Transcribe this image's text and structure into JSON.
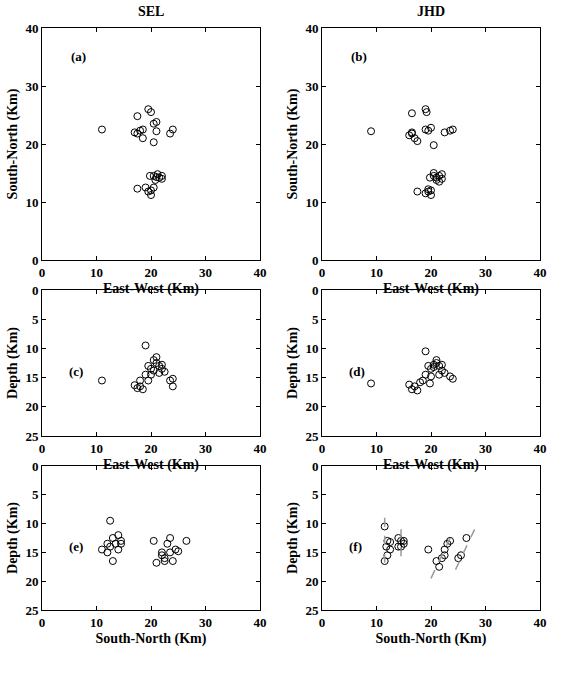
{
  "chart_data": [
    {
      "type": "scatter",
      "title": "SEL",
      "annotations": [
        "(a)"
      ],
      "x_label": "East-West (Km)",
      "y_label": "South-North (Km)",
      "xlim": [
        0,
        40
      ],
      "xticks": [
        0,
        10,
        20,
        30,
        40
      ],
      "ylim": [
        0,
        40
      ],
      "yticks": [
        0,
        10,
        20,
        30,
        40
      ],
      "series": [
        {
          "color": "#000000",
          "marker": "circle-open",
          "x": [
            11,
            17.5,
            19.5,
            20,
            17,
            18,
            17.5,
            18.5,
            20.5,
            21,
            21,
            23.5,
            24,
            20.5,
            18.5,
            17.5,
            19,
            19.5,
            20,
            20.5,
            20,
            20.5,
            21,
            21.5,
            22,
            20.8,
            21.2,
            22,
            19.8
          ],
          "y": [
            22.5,
            24.8,
            26,
            25.5,
            22,
            22.3,
            21.8,
            22.5,
            23.5,
            23.8,
            22.2,
            21.8,
            22.5,
            20.3,
            21,
            12.3,
            12.5,
            11.8,
            11.2,
            12.5,
            12,
            14.5,
            14.3,
            14.2,
            14,
            13.8,
            14.8,
            14.5,
            14.5
          ]
        }
      ]
    },
    {
      "type": "scatter",
      "title": "JHD",
      "annotations": [
        "(b)"
      ],
      "x_label": "East-West (Km)",
      "y_label": "South-North (Km)",
      "xlim": [
        0,
        40
      ],
      "xticks": [
        0,
        10,
        20,
        30,
        40
      ],
      "ylim": [
        0,
        40
      ],
      "yticks": [
        0,
        10,
        20,
        30,
        40
      ],
      "series": [
        {
          "color": "#000000",
          "marker": "circle-open",
          "x": [
            9,
            16.5,
            19,
            19.2,
            16,
            16.5,
            17,
            16.5,
            17.5,
            19,
            19.5,
            20,
            20.5,
            22.5,
            23.5,
            24,
            17.5,
            19,
            19.5,
            20,
            20,
            19.5,
            20.5,
            21,
            21.5,
            22,
            21,
            22,
            20.5,
            21.5,
            19.8
          ],
          "y": [
            22.2,
            25.3,
            26,
            25.5,
            21.5,
            21.8,
            21,
            22,
            20.5,
            22.5,
            22.3,
            22.8,
            19.8,
            22,
            22.3,
            22.5,
            11.8,
            11.5,
            11.8,
            11.2,
            12,
            12.2,
            14.5,
            14.2,
            14.5,
            14.8,
            13.8,
            14,
            15,
            13.5,
            14.2
          ]
        }
      ]
    },
    {
      "type": "scatter",
      "annotations": [
        "(c)"
      ],
      "x_label": "East-West (Km)",
      "y_label": "Depth (Km)",
      "xlim": [
        0,
        40
      ],
      "xticks": [
        0,
        10,
        20,
        30,
        40
      ],
      "ylim": [
        25,
        0
      ],
      "yticks": [
        0,
        5,
        10,
        15,
        20,
        25
      ],
      "series": [
        {
          "color": "#000000",
          "marker": "circle-open",
          "x": [
            11,
            17,
            17.5,
            18,
            18.5,
            18,
            19,
            19.5,
            20,
            20.5,
            21,
            21.5,
            22,
            20,
            21,
            22.5,
            23.5,
            24,
            24,
            19,
            20.5,
            21.5,
            19.5,
            22
          ],
          "y": [
            15.5,
            16.3,
            16.8,
            16.5,
            17,
            15.5,
            9.5,
            13,
            13.5,
            13.8,
            12.5,
            13,
            13.5,
            14.5,
            11.5,
            14,
            15.5,
            15.2,
            16.5,
            14.5,
            12,
            14.2,
            15.5,
            12.8
          ]
        }
      ]
    },
    {
      "type": "scatter",
      "annotations": [
        "(d)"
      ],
      "x_label": "East-West (Km)",
      "y_label": "Depth (Km)",
      "xlim": [
        0,
        40
      ],
      "xticks": [
        0,
        10,
        20,
        30,
        40
      ],
      "ylim": [
        25,
        0
      ],
      "yticks": [
        0,
        5,
        10,
        15,
        20,
        25
      ],
      "series": [
        {
          "color": "#000000",
          "marker": "circle-open",
          "x": [
            9,
            16,
            16.5,
            17,
            17.5,
            18,
            19,
            19.5,
            20,
            20.5,
            21,
            21.5,
            22,
            20,
            21,
            22.5,
            23.5,
            24,
            19,
            20.5,
            21.5,
            18.5,
            22,
            19.8
          ],
          "y": [
            16,
            16.2,
            17,
            16.5,
            17.2,
            15.8,
            10.5,
            13,
            13.5,
            13.2,
            12.5,
            13,
            13.8,
            14.8,
            12,
            14.2,
            14.8,
            15.2,
            14.5,
            12.8,
            14.5,
            15.5,
            12.8,
            16
          ]
        }
      ]
    },
    {
      "type": "scatter",
      "annotations": [
        "(e)"
      ],
      "x_label": "South-North (Km)",
      "y_label": "Depth (Km)",
      "xlim": [
        0,
        40
      ],
      "xticks": [
        0,
        10,
        20,
        30,
        40
      ],
      "ylim": [
        25,
        0
      ],
      "yticks": [
        0,
        5,
        10,
        15,
        20,
        25
      ],
      "series": [
        {
          "color": "#000000",
          "marker": "circle-open",
          "x": [
            11,
            12,
            12.5,
            12,
            13,
            13.5,
            14,
            14.5,
            13,
            12.5,
            14,
            14.5,
            20.5,
            21,
            22,
            22.5,
            22,
            23,
            23.5,
            24.5,
            25,
            26.5,
            24,
            22.5,
            23.5
          ],
          "y": [
            14.5,
            13.5,
            9.5,
            15,
            12.5,
            13.5,
            12,
            13,
            16.5,
            14,
            14.5,
            13.5,
            13,
            16.8,
            15.5,
            16.5,
            15,
            13.5,
            12.5,
            14.5,
            14.8,
            13,
            16.5,
            16,
            15
          ]
        }
      ]
    },
    {
      "type": "scatter",
      "annotations": [
        "(f)"
      ],
      "x_label": "South-North (Km)",
      "y_label": "Depth (Km)",
      "xlim": [
        0,
        40
      ],
      "xticks": [
        0,
        10,
        20,
        30,
        40
      ],
      "ylim": [
        25,
        0
      ],
      "yticks": [
        0,
        5,
        10,
        15,
        20,
        25
      ],
      "series": [
        {
          "color": "#000000",
          "marker": "circle-open",
          "x": [
            11.5,
            11.8,
            12,
            12.5,
            11.5,
            12,
            12.5,
            14,
            14.5,
            15,
            14,
            15,
            14.5,
            19.5,
            21,
            21.5,
            22,
            22.5,
            22.5,
            23,
            23.5,
            25,
            25.5,
            26.5
          ],
          "y": [
            10.5,
            14,
            13,
            14.5,
            16.5,
            15.5,
            13.2,
            12.5,
            13,
            13.5,
            14,
            13,
            14,
            14.5,
            16.5,
            17.5,
            16,
            15.5,
            14.5,
            13.5,
            13,
            16,
            15.5,
            12.5
          ]
        },
        {
          "type": "line",
          "line_style": "dashed",
          "color": "#999999",
          "x": [
            11.5,
            11.5,
            null,
            14.5,
            14.5,
            null,
            20,
            23.5,
            null,
            24.5,
            28
          ],
          "y": [
            9,
            18,
            null,
            11,
            17,
            null,
            19.5,
            12.5,
            null,
            18,
            11
          ]
        }
      ]
    }
  ]
}
